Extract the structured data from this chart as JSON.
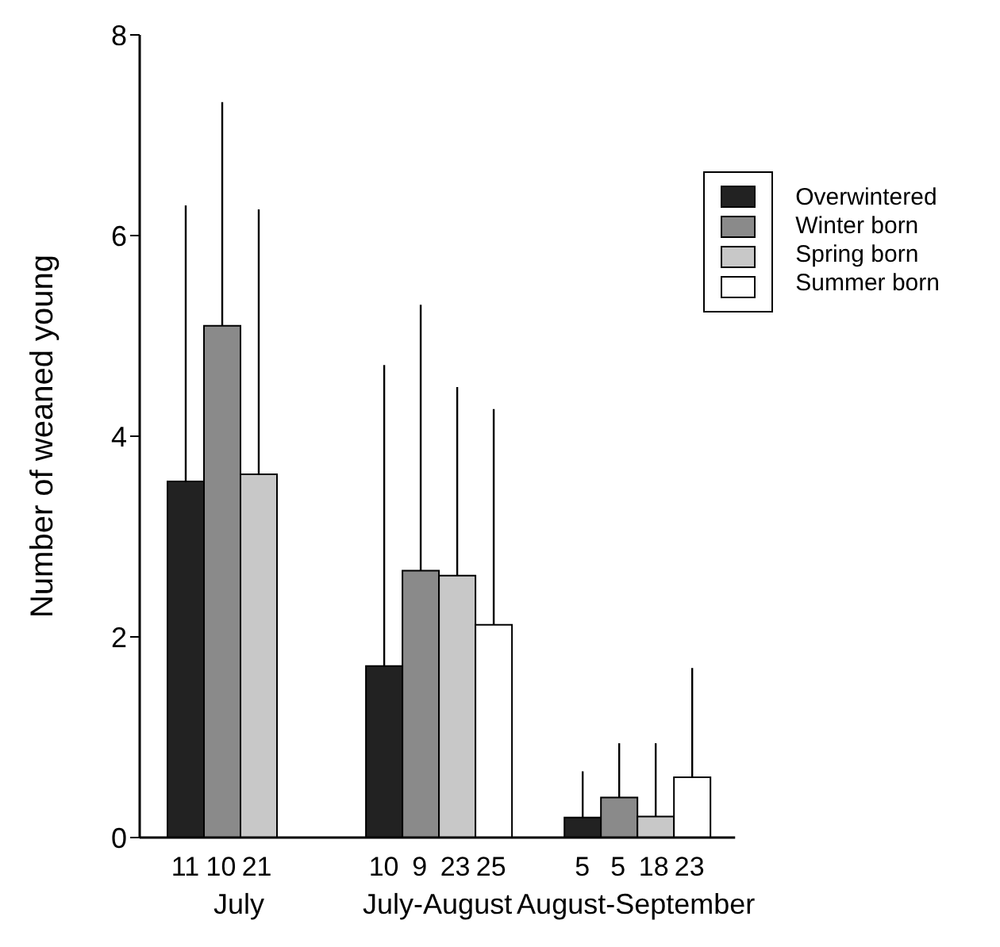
{
  "chart_data": {
    "type": "bar",
    "ylabel": "Number of weaned young",
    "categories": [
      "July",
      "July-August",
      "August-September"
    ],
    "series": [
      {
        "name": "Overwintered",
        "color": "#222222",
        "values": [
          3.55,
          1.71,
          0.2
        ],
        "errors": [
          [
            3.55,
            6.3
          ],
          [
            1.71,
            4.71
          ],
          [
            0.2,
            0.66
          ]
        ]
      },
      {
        "name": "Winter born",
        "color": "#8a8a8a",
        "values": [
          5.1,
          2.66,
          0.4
        ],
        "errors": [
          [
            5.1,
            7.33
          ],
          [
            2.66,
            5.31
          ],
          [
            0.4,
            0.94
          ]
        ]
      },
      {
        "name": "Spring born",
        "color": "#c8c8c8",
        "values": [
          3.62,
          2.61,
          0.21
        ],
        "errors": [
          [
            3.62,
            6.26
          ],
          [
            2.61,
            4.49
          ],
          [
            0.21,
            0.94
          ]
        ]
      },
      {
        "name": "Summer born",
        "color": "#ffffff",
        "values": [
          null,
          2.12,
          0.6
        ],
        "errors": [
          null,
          [
            2.12,
            4.27
          ],
          [
            0.6,
            1.69
          ]
        ]
      }
    ],
    "annotations": [
      "11",
      "10",
      "21",
      "10",
      "9",
      "23",
      "25",
      "5",
      "5",
      "18",
      "23"
    ],
    "ylim": [
      0,
      8
    ],
    "yticks": [
      0,
      2,
      4,
      6,
      8
    ],
    "grid": false,
    "legend": "top right"
  }
}
